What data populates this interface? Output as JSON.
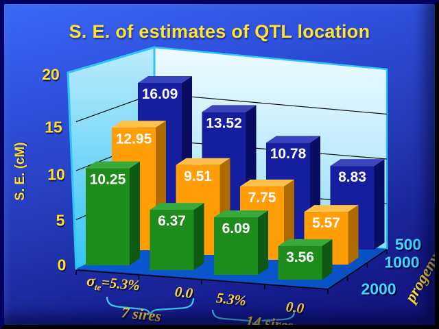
{
  "title": "S. E. of estimates of QTL location",
  "y_axis": {
    "label": "S. E. (cM)",
    "ticks": [
      "20",
      "15",
      "10",
      "5",
      "0"
    ]
  },
  "x_axis": {
    "categories": [
      {
        "prefix": "σ",
        "subscript": "te",
        "suffix": "=5.3%"
      },
      {
        "text": "0.0"
      },
      {
        "text": "5.3%"
      },
      {
        "text": "0.0"
      }
    ],
    "cluster_labels": [
      "7 sires",
      "14 sires"
    ]
  },
  "legend": {
    "items": [
      "500",
      "1000",
      "2000"
    ],
    "title": "progeny"
  },
  "chart_data": {
    "type": "bar",
    "projection": "3d",
    "title": "S. E. of estimates of QTL location",
    "ylabel": "S. E. (cM)",
    "ylim": [
      0,
      20
    ],
    "yticks": [
      0,
      5,
      10,
      15,
      20
    ],
    "categories": [
      "σte=5.3%",
      "0.0",
      "5.3%",
      "0.0"
    ],
    "category_groups": [
      {
        "label": "7 sires",
        "categories": [
          0,
          1
        ]
      },
      {
        "label": "14 sires",
        "categories": [
          2,
          3
        ]
      }
    ],
    "series": [
      {
        "name": "500",
        "values": [
          16.09,
          13.52,
          10.78,
          8.83
        ],
        "colors": {
          "front": "#161EA0",
          "side": "#0A0E62",
          "top": "#3A45BC"
        }
      },
      {
        "name": "1000",
        "values": [
          12.95,
          9.51,
          7.75,
          5.57
        ],
        "colors": {
          "front": "#FF9E06",
          "side": "#AF6A00",
          "top": "#FFC14A"
        }
      },
      {
        "name": "2000",
        "values": [
          10.25,
          6.37,
          6.09,
          3.56
        ],
        "colors": {
          "front": "#1D8C1D",
          "side": "#0F5A12",
          "top": "#38AA3B"
        }
      }
    ],
    "legend_title": "progeny",
    "legend_position": "right",
    "grid": true
  },
  "colors": {
    "background_top": "#3A68F6",
    "background_bottom": "#12137A",
    "title_text": "#FFE430",
    "axis_text": "#FFDF2B",
    "category_text": "#FFD92B",
    "legend_text": "#3FD8FF",
    "wall_back": "#BDEBFB",
    "wall_side": "#3FC9F9",
    "floor": "#0957CE",
    "wall_edge": "#2FC4F6",
    "gridline": "#0A0A0A",
    "value_label": "#FFFFFF"
  }
}
